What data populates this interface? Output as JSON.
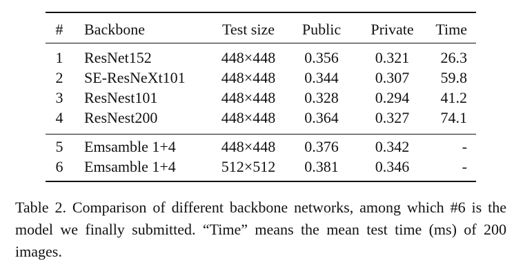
{
  "table": {
    "headers": [
      "#",
      "Backbone",
      "Test size",
      "Public",
      "Private",
      "Time"
    ],
    "group1": [
      [
        "1",
        "ResNet152",
        "448×448",
        "0.356",
        "0.321",
        "26.3"
      ],
      [
        "2",
        "SE-ResNeXt101",
        "448×448",
        "0.344",
        "0.307",
        "59.8"
      ],
      [
        "3",
        "ResNest101",
        "448×448",
        "0.328",
        "0.294",
        "41.2"
      ],
      [
        "4",
        "ResNest200",
        "448×448",
        "0.364",
        "0.327",
        "74.1"
      ]
    ],
    "group2": [
      [
        "5",
        "Emsamble 1+4",
        "448×448",
        "0.376",
        "0.342",
        "-"
      ],
      [
        "6",
        "Emsamble 1+4",
        "512×512",
        "0.381",
        "0.346",
        "-"
      ]
    ]
  },
  "caption": "Table 2. Comparison of different backbone networks, among which #6 is the model we finally submitted. “Time” means the mean test time (ms) of 200 images."
}
